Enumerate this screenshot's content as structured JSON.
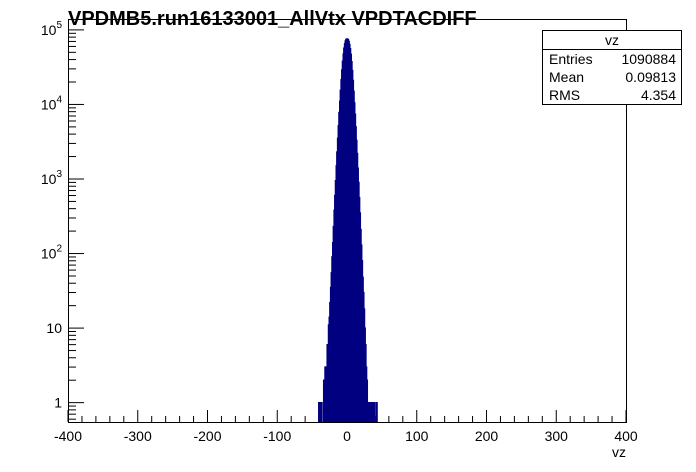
{
  "title": "VPDMB5.run16133001_AllVtx VPDTACDIFF",
  "stats": {
    "name": "vz",
    "rows": [
      {
        "label": "Entries",
        "value": "1090884"
      },
      {
        "label": "Mean",
        "value": "0.09813"
      },
      {
        "label": "RMS",
        "value": "4.354"
      }
    ]
  },
  "colors": {
    "line": "#000080",
    "axis": "#000000"
  },
  "chart_data": {
    "type": "line",
    "title": "VPDMB5.run16133001_AllVtx VPDTACDIFF",
    "xlabel": "vz",
    "ylabel": "",
    "xlim": [
      -400,
      400
    ],
    "ylim": [
      0.55,
      140000
    ],
    "yscale": "log",
    "x_ticks": [
      -400,
      -300,
      -200,
      -100,
      0,
      100,
      200,
      300,
      400
    ],
    "x_tick_labels": [
      "-400",
      "-300",
      "-200",
      "-100",
      "0",
      "100",
      "200",
      "300",
      "400"
    ],
    "y_ticks": [
      1,
      10,
      100,
      1000,
      10000,
      100000
    ],
    "y_tick_labels": [
      {
        "base": "1",
        "exp": ""
      },
      {
        "base": "10",
        "exp": ""
      },
      {
        "base": "10",
        "exp": "2"
      },
      {
        "base": "10",
        "exp": "3"
      },
      {
        "base": "10",
        "exp": "4"
      },
      {
        "base": "10",
        "exp": "5"
      }
    ],
    "bin_width": 1,
    "bins": [
      {
        "x": -40,
        "y": 1
      },
      {
        "x": -37,
        "y": 1
      },
      {
        "x": -33,
        "y": 2
      },
      {
        "x": -31,
        "y": 3
      },
      {
        "x": -29,
        "y": 1
      },
      {
        "x": -28,
        "y": 6
      },
      {
        "x": -26,
        "y": 11
      },
      {
        "x": -25,
        "y": 14
      },
      {
        "x": -24,
        "y": 22
      },
      {
        "x": -23,
        "y": 35
      },
      {
        "x": -22,
        "y": 55
      },
      {
        "x": -21,
        "y": 90
      },
      {
        "x": -20,
        "y": 140
      },
      {
        "x": -19,
        "y": 230
      },
      {
        "x": -18,
        "y": 380
      },
      {
        "x": -17,
        "y": 600
      },
      {
        "x": -16,
        "y": 950
      },
      {
        "x": -15,
        "y": 1500
      },
      {
        "x": -14,
        "y": 2300
      },
      {
        "x": -13,
        "y": 3500
      },
      {
        "x": -12,
        "y": 5200
      },
      {
        "x": -11,
        "y": 7800
      },
      {
        "x": -10,
        "y": 11000
      },
      {
        "x": -9,
        "y": 15500
      },
      {
        "x": -8,
        "y": 21500
      },
      {
        "x": -7,
        "y": 29000
      },
      {
        "x": -6,
        "y": 38000
      },
      {
        "x": -5,
        "y": 47500
      },
      {
        "x": -4,
        "y": 57000
      },
      {
        "x": -3,
        "y": 65000
      },
      {
        "x": -2,
        "y": 71000
      },
      {
        "x": -1,
        "y": 74500
      },
      {
        "x": 0,
        "y": 75500
      },
      {
        "x": 1,
        "y": 74000
      },
      {
        "x": 2,
        "y": 70000
      },
      {
        "x": 3,
        "y": 64000
      },
      {
        "x": 4,
        "y": 56000
      },
      {
        "x": 5,
        "y": 47000
      },
      {
        "x": 6,
        "y": 37500
      },
      {
        "x": 7,
        "y": 28500
      },
      {
        "x": 8,
        "y": 21000
      },
      {
        "x": 9,
        "y": 15000
      },
      {
        "x": 10,
        "y": 10500
      },
      {
        "x": 11,
        "y": 7400
      },
      {
        "x": 12,
        "y": 5000
      },
      {
        "x": 13,
        "y": 3300
      },
      {
        "x": 14,
        "y": 2200
      },
      {
        "x": 15,
        "y": 1400
      },
      {
        "x": 16,
        "y": 900
      },
      {
        "x": 17,
        "y": 560
      },
      {
        "x": 18,
        "y": 350
      },
      {
        "x": 19,
        "y": 210
      },
      {
        "x": 20,
        "y": 130
      },
      {
        "x": 21,
        "y": 80
      },
      {
        "x": 22,
        "y": 48
      },
      {
        "x": 23,
        "y": 30
      },
      {
        "x": 24,
        "y": 18
      },
      {
        "x": 25,
        "y": 10
      },
      {
        "x": 26,
        "y": 6
      },
      {
        "x": 27,
        "y": 3
      },
      {
        "x": 28,
        "y": 2
      },
      {
        "x": 29,
        "y": 1
      },
      {
        "x": 31,
        "y": 1
      },
      {
        "x": 33,
        "y": 1
      },
      {
        "x": 36,
        "y": 1
      },
      {
        "x": 38,
        "y": 1
      },
      {
        "x": 42,
        "y": 1
      }
    ]
  }
}
